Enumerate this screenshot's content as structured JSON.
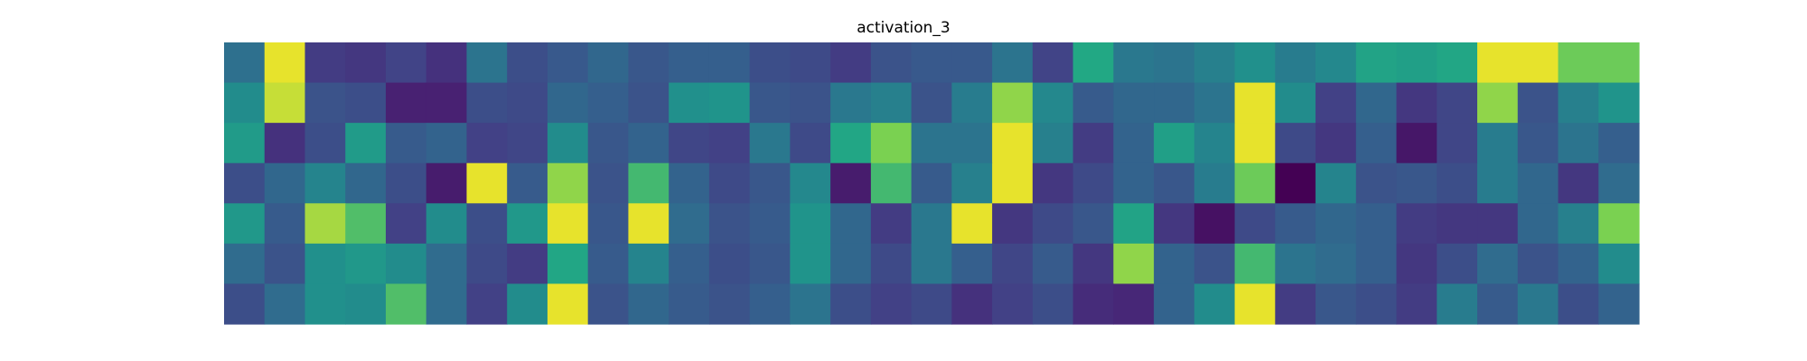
{
  "chart_data": {
    "type": "heatmap",
    "title": "activation_3",
    "colormap": "viridis",
    "vmin": 0,
    "vmax": 1,
    "rows": 7,
    "cols": 35,
    "values": [
      [
        0.46,
        0.98,
        0.22,
        0.2,
        0.25,
        0.18,
        0.48,
        0.3,
        0.35,
        0.42,
        0.34,
        0.38,
        0.38,
        0.3,
        0.28,
        0.22,
        0.32,
        0.35,
        0.35,
        0.48,
        0.25,
        0.75,
        0.5,
        0.48,
        0.54,
        0.62,
        0.52,
        0.58,
        0.72,
        0.7,
        0.74,
        0.98,
        0.98,
        0.86,
        0.86
      ],
      [
        0.6,
        0.95,
        0.32,
        0.3,
        0.12,
        0.12,
        0.3,
        0.28,
        0.42,
        0.38,
        0.32,
        0.62,
        0.64,
        0.34,
        0.32,
        0.5,
        0.54,
        0.32,
        0.52,
        0.9,
        0.58,
        0.36,
        0.42,
        0.42,
        0.48,
        0.98,
        0.6,
        0.24,
        0.42,
        0.2,
        0.26,
        0.9,
        0.32,
        0.54,
        0.64
      ],
      [
        0.68,
        0.18,
        0.3,
        0.68,
        0.36,
        0.4,
        0.24,
        0.26,
        0.6,
        0.34,
        0.4,
        0.26,
        0.24,
        0.5,
        0.28,
        0.74,
        0.88,
        0.48,
        0.48,
        0.98,
        0.54,
        0.22,
        0.4,
        0.7,
        0.56,
        0.98,
        0.28,
        0.2,
        0.38,
        0.08,
        0.26,
        0.52,
        0.34,
        0.48,
        0.38
      ],
      [
        0.3,
        0.42,
        0.56,
        0.42,
        0.3,
        0.1,
        0.98,
        0.36,
        0.9,
        0.32,
        0.8,
        0.4,
        0.28,
        0.34,
        0.58,
        0.1,
        0.8,
        0.36,
        0.54,
        0.98,
        0.2,
        0.28,
        0.4,
        0.34,
        0.52,
        0.86,
        0.0,
        0.56,
        0.32,
        0.34,
        0.3,
        0.52,
        0.42,
        0.2,
        0.44
      ],
      [
        0.66,
        0.36,
        0.92,
        0.82,
        0.24,
        0.6,
        0.3,
        0.66,
        0.98,
        0.34,
        0.98,
        0.44,
        0.32,
        0.36,
        0.64,
        0.42,
        0.22,
        0.5,
        0.98,
        0.2,
        0.28,
        0.34,
        0.72,
        0.2,
        0.06,
        0.28,
        0.36,
        0.42,
        0.38,
        0.22,
        0.2,
        0.2,
        0.42,
        0.54,
        0.88
      ],
      [
        0.44,
        0.32,
        0.62,
        0.66,
        0.6,
        0.44,
        0.28,
        0.22,
        0.74,
        0.36,
        0.56,
        0.38,
        0.3,
        0.34,
        0.64,
        0.42,
        0.28,
        0.5,
        0.38,
        0.26,
        0.36,
        0.2,
        0.9,
        0.4,
        0.32,
        0.8,
        0.48,
        0.44,
        0.38,
        0.2,
        0.3,
        0.44,
        0.32,
        0.4,
        0.6
      ],
      [
        0.3,
        0.44,
        0.62,
        0.6,
        0.82,
        0.44,
        0.24,
        0.6,
        0.98,
        0.32,
        0.42,
        0.36,
        0.32,
        0.38,
        0.48,
        0.3,
        0.24,
        0.28,
        0.18,
        0.24,
        0.3,
        0.16,
        0.14,
        0.4,
        0.6,
        0.98,
        0.22,
        0.34,
        0.3,
        0.22,
        0.52,
        0.36,
        0.5,
        0.3,
        0.4
      ]
    ]
  }
}
